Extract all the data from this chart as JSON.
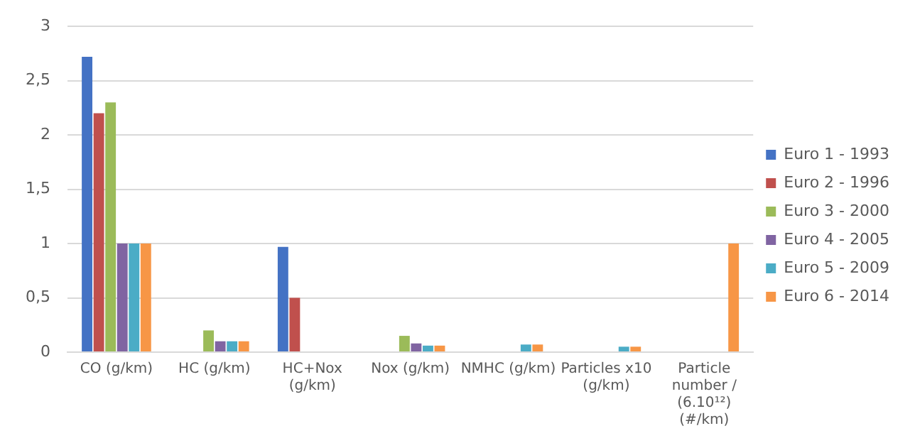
{
  "chart_data": {
    "type": "bar",
    "categories": [
      "CO (g/km)",
      "HC (g/km)",
      "HC+Nox (g/km)",
      "Nox (g/km)",
      "NMHC (g/km)",
      "Particles x10 (g/km)",
      "Particle number / (6.10¹²) (#/km)"
    ],
    "series": [
      {
        "name": "Euro 1 - 1993",
        "color": "#4472c4",
        "values": [
          2.72,
          null,
          0.97,
          null,
          null,
          null,
          null
        ]
      },
      {
        "name": "Euro 2 - 1996",
        "color": "#c0504d",
        "values": [
          2.2,
          null,
          0.5,
          null,
          null,
          null,
          null
        ]
      },
      {
        "name": "Euro 3 - 2000",
        "color": "#9bbb59",
        "values": [
          2.3,
          0.2,
          null,
          0.15,
          null,
          null,
          null
        ]
      },
      {
        "name": "Euro 4 - 2005",
        "color": "#8064a2",
        "values": [
          1,
          0.1,
          null,
          0.08,
          null,
          null,
          null
        ]
      },
      {
        "name": "Euro 5 - 2009",
        "color": "#4bacc6",
        "values": [
          1,
          0.1,
          null,
          0.06,
          0.07,
          0.05,
          null
        ]
      },
      {
        "name": "Euro 6 - 2014",
        "color": "#f79646",
        "values": [
          1,
          0.1,
          null,
          0.06,
          0.07,
          0.05,
          1
        ]
      }
    ],
    "ylim": [
      0,
      3
    ],
    "yticks": [
      0,
      {
        "value": 0.5,
        "label": "0,5"
      },
      1,
      {
        "value": 1.5,
        "label": "1,5"
      },
      2,
      {
        "value": 2.5,
        "label": "2,5"
      },
      3
    ],
    "grid": "y",
    "legend": "right"
  }
}
